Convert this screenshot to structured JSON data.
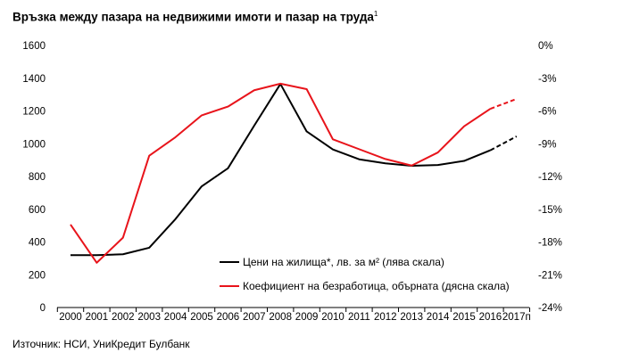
{
  "title": "Връзка между пазара на недвижими имоти и пазар на труда",
  "title_footnote": "1",
  "source": "Източник: НСИ, УниКредит Булбанк",
  "chart_data": {
    "type": "line",
    "x": [
      "2000",
      "2001",
      "2002",
      "2003",
      "2004",
      "2005",
      "2006",
      "2007",
      "2008",
      "2009",
      "2010",
      "2011",
      "2012",
      "2013",
      "2014",
      "2015",
      "2016",
      "2017п"
    ],
    "y_left": {
      "ticks": [
        "0",
        "200",
        "400",
        "600",
        "800",
        "1000",
        "1200",
        "1400",
        "1600"
      ],
      "range": [
        0,
        1600
      ]
    },
    "y_right": {
      "ticks": [
        "0%",
        "-3%",
        "-6%",
        "-9%",
        "-12%",
        "-15%",
        "-18%",
        "-21%",
        "-24%"
      ],
      "range": [
        -24,
        0
      ],
      "inverted_note": "0% at top, -24% at bottom"
    },
    "legend_position": "bottom-right",
    "grid": false,
    "series": [
      {
        "name": "Цени на жилища*, лв. за м² (лява скала)",
        "axis": "left",
        "color": "#000000",
        "values": [
          320,
          320,
          325,
          365,
          540,
          740,
          850,
          1110,
          1365,
          1075,
          965,
          905,
          880,
          865,
          870,
          895,
          960,
          1045
        ],
        "forecast_from_index": 16
      },
      {
        "name": "Коефициент на безработица, обърната (дясна скала)",
        "axis": "right",
        "color": "#e8141b",
        "values": [
          -16.4,
          -19.9,
          -17.6,
          -10.1,
          -8.4,
          -6.4,
          -5.6,
          -4.1,
          -3.5,
          -4.0,
          -8.6,
          -9.5,
          -10.4,
          -11.0,
          -9.8,
          -7.4,
          -5.8,
          -4.9
        ],
        "forecast_from_index": 16
      }
    ]
  }
}
